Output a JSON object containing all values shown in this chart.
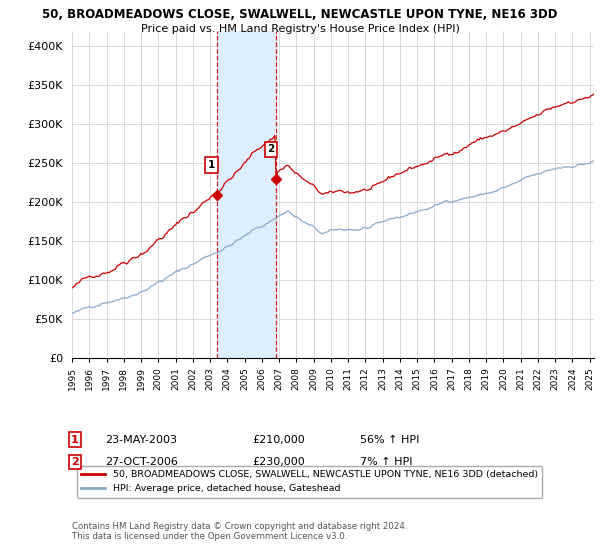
{
  "title_line1": "50, BROADMEADOWS CLOSE, SWALWELL, NEWCASTLE UPON TYNE, NE16 3DD",
  "title_line2": "Price paid vs. HM Land Registry's House Price Index (HPI)",
  "ylim": [
    0,
    420000
  ],
  "yticks": [
    0,
    50000,
    100000,
    150000,
    200000,
    250000,
    300000,
    350000,
    400000
  ],
  "ytick_labels": [
    "£0",
    "£50K",
    "£100K",
    "£150K",
    "£200K",
    "£250K",
    "£300K",
    "£350K",
    "£400K"
  ],
  "sale1_year": 2003.38,
  "sale1_price": 210000,
  "sale1_label": "1",
  "sale1_date": "23-MAY-2003",
  "sale1_pct": "56% ↑ HPI",
  "sale2_year": 2006.83,
  "sale2_price": 230000,
  "sale2_label": "2",
  "sale2_date": "27-OCT-2006",
  "sale2_pct": "7% ↑ HPI",
  "red_line_color": "#cc0000",
  "blue_line_color": "#88aacc",
  "shade_color": "#ddeeff",
  "vline_color": "#cc2222",
  "background_color": "#ffffff",
  "grid_color": "#cccccc",
  "legend_label_red": "50, BROADMEADOWS CLOSE, SWALWELL, NEWCASTLE UPON TYNE, NE16 3DD (detached)",
  "legend_label_blue": "HPI: Average price, detached house, Gateshead",
  "footnote": "Contains HM Land Registry data © Crown copyright and database right 2024.\nThis data is licensed under the Open Government Licence v3.0."
}
